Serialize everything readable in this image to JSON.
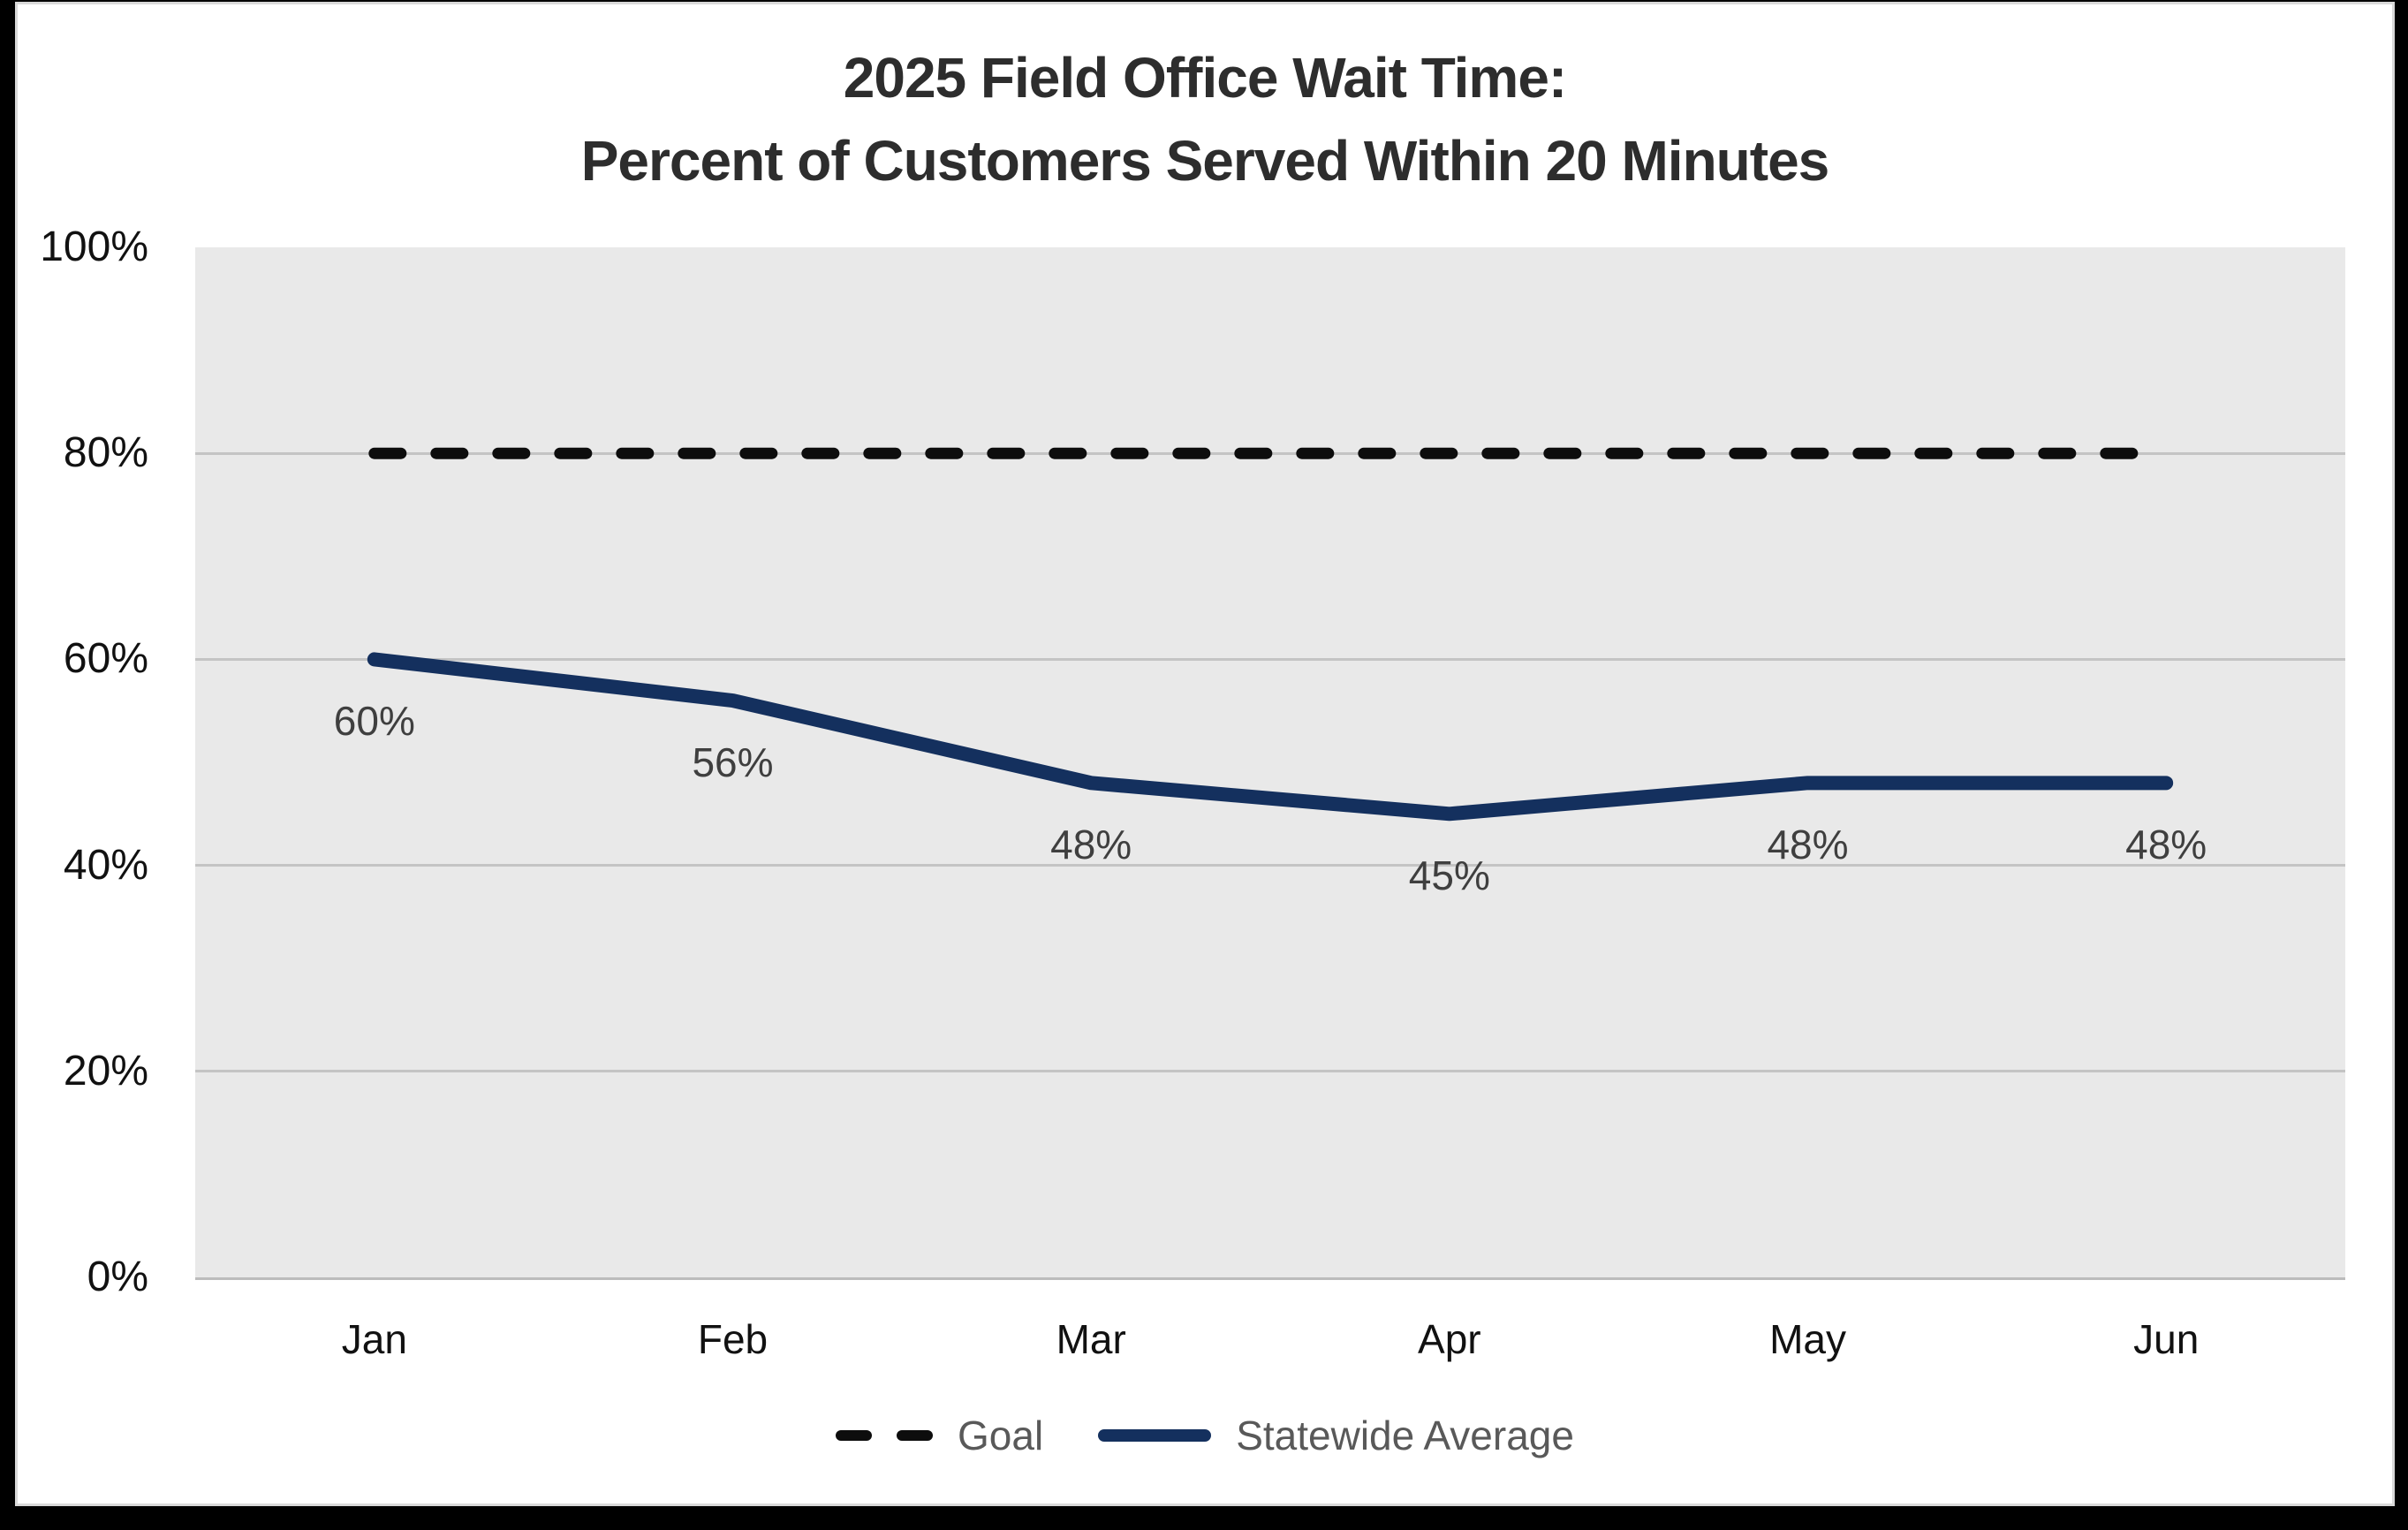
{
  "title": {
    "line1": "2025 Field Office Wait Time:",
    "line2": "Percent of Customers Served Within 20 Minutes"
  },
  "legend": {
    "items": [
      {
        "label": "Goal",
        "style": "dashed",
        "color": "#0d0d0d"
      },
      {
        "label": "Statewide Average",
        "style": "solid",
        "color": "#14305e"
      }
    ]
  },
  "chart_data": {
    "type": "line",
    "title": "2025 Field Office Wait Time: Percent of Customers Served Within 20 Minutes",
    "categories": [
      "Jan",
      "Feb",
      "Mar",
      "Apr",
      "May",
      "Jun"
    ],
    "series": [
      {
        "name": "Goal",
        "color": "#0d0d0d",
        "dash": true,
        "values": [
          80,
          80,
          80,
          80,
          80,
          80
        ],
        "labels": null
      },
      {
        "name": "Statewide Average",
        "color": "#14305e",
        "dash": false,
        "values": [
          60,
          56,
          48,
          45,
          48,
          48
        ],
        "labels": [
          "60%",
          "56%",
          "48%",
          "45%",
          "48%",
          "48%"
        ]
      }
    ],
    "xlabel": "",
    "ylabel": "",
    "ylim": [
      0,
      100
    ],
    "yticks": [
      {
        "value": 0,
        "label": "0%"
      },
      {
        "value": 20,
        "label": "20%"
      },
      {
        "value": 40,
        "label": "40%"
      },
      {
        "value": 60,
        "label": "60%"
      },
      {
        "value": 80,
        "label": "80%"
      },
      {
        "value": 100,
        "label": "100%"
      }
    ],
    "grid": true,
    "legend_position": "bottom",
    "plot_background": "#e9e9e9",
    "gridline_color": "#c4c4c4",
    "data_label_color": "#3f3f3f"
  }
}
